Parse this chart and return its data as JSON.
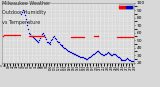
{
  "bg_color": "#d8d8d8",
  "plot_bg_color": "#d8d8d8",
  "grid_color": "#ffffff",
  "legend_red_color": "#ff0000",
  "legend_blue_color": "#0000cc",
  "ylim": [
    20,
    100
  ],
  "xlim": [
    0,
    288
  ],
  "ytick_values": [
    20,
    30,
    40,
    50,
    60,
    70,
    80,
    90,
    100
  ],
  "ytick_labels": [
    "20",
    "30",
    "40",
    "50",
    "60",
    "70",
    "80",
    "90",
    "100"
  ],
  "blue_x": [
    42,
    44,
    46,
    48,
    50,
    52,
    54,
    56,
    58,
    60,
    62,
    64,
    66,
    68,
    70,
    72,
    74,
    76,
    78,
    80,
    82,
    84,
    86,
    88,
    90,
    92,
    94,
    96,
    98,
    100,
    102,
    104,
    106,
    108,
    110,
    112,
    114,
    116,
    118,
    120,
    122,
    124,
    126,
    128,
    130,
    132,
    134,
    136,
    138,
    140,
    142,
    144,
    146,
    148,
    150,
    152,
    154,
    156,
    158,
    160,
    162,
    164,
    166,
    168,
    170,
    172,
    174,
    176,
    178,
    180,
    182,
    184,
    186,
    188,
    190,
    192,
    194,
    196,
    198,
    200,
    202,
    204,
    206,
    208,
    210,
    212,
    214,
    216,
    218,
    220,
    222,
    224,
    226,
    228,
    230,
    232,
    234,
    236,
    238,
    240,
    242,
    244,
    246,
    248,
    250,
    252,
    254,
    256,
    258,
    260,
    262,
    264,
    266,
    268,
    270,
    272,
    274,
    276,
    278,
    280,
    282,
    284
  ],
  "blue_y": [
    85,
    88,
    90,
    87,
    83,
    78,
    74,
    70,
    65,
    60,
    58,
    56,
    55,
    54,
    53,
    52,
    50,
    49,
    48,
    47,
    50,
    53,
    56,
    58,
    60,
    57,
    54,
    51,
    48,
    47,
    46,
    45,
    47,
    50,
    52,
    54,
    55,
    53,
    51,
    49,
    48,
    47,
    45,
    44,
    43,
    42,
    41,
    40,
    39,
    38,
    37,
    36,
    35,
    34,
    34,
    33,
    33,
    32,
    32,
    31,
    30,
    30,
    29,
    29,
    28,
    28,
    27,
    27,
    26,
    26,
    25,
    25,
    25,
    26,
    27,
    28,
    29,
    30,
    31,
    32,
    33,
    34,
    35,
    36,
    35,
    34,
    33,
    32,
    31,
    30,
    30,
    31,
    32,
    33,
    34,
    33,
    32,
    31,
    30,
    30,
    31,
    32,
    31,
    30,
    29,
    28,
    27,
    26,
    25,
    24,
    23,
    23,
    23,
    24,
    25,
    26,
    25,
    24,
    23,
    22,
    22,
    22
  ],
  "red_x": [
    2,
    4,
    6,
    8,
    10,
    12,
    14,
    16,
    18,
    20,
    22,
    24,
    26,
    28,
    30,
    32,
    34,
    36,
    38,
    40,
    60,
    62,
    64,
    66,
    68,
    70,
    72,
    74,
    76,
    78,
    80,
    82,
    84,
    86,
    88,
    90,
    92,
    150,
    152,
    154,
    156,
    158,
    160,
    162,
    164,
    166,
    168,
    170,
    172,
    174,
    176,
    178,
    200,
    202,
    204,
    206,
    208,
    210,
    250,
    252,
    254,
    256,
    258,
    260,
    262,
    264,
    266,
    268,
    270,
    272,
    274,
    276,
    278,
    280,
    282,
    284
  ],
  "red_y": [
    56,
    56,
    57,
    57,
    57,
    57,
    57,
    57,
    57,
    57,
    57,
    57,
    57,
    57,
    57,
    57,
    57,
    57,
    57,
    57,
    55,
    55,
    55,
    55,
    55,
    55,
    55,
    55,
    55,
    55,
    55,
    55,
    55,
    55,
    55,
    55,
    55,
    54,
    54,
    54,
    54,
    54,
    54,
    54,
    54,
    54,
    54,
    54,
    54,
    54,
    54,
    54,
    55,
    55,
    55,
    55,
    55,
    55,
    54,
    54,
    54,
    54,
    54,
    54,
    54,
    54,
    54,
    54,
    54,
    54,
    54,
    54,
    54,
    54,
    54,
    54
  ],
  "title_fontsize": 3.5,
  "tick_fontsize": 3.2,
  "marker_size": 1.0
}
